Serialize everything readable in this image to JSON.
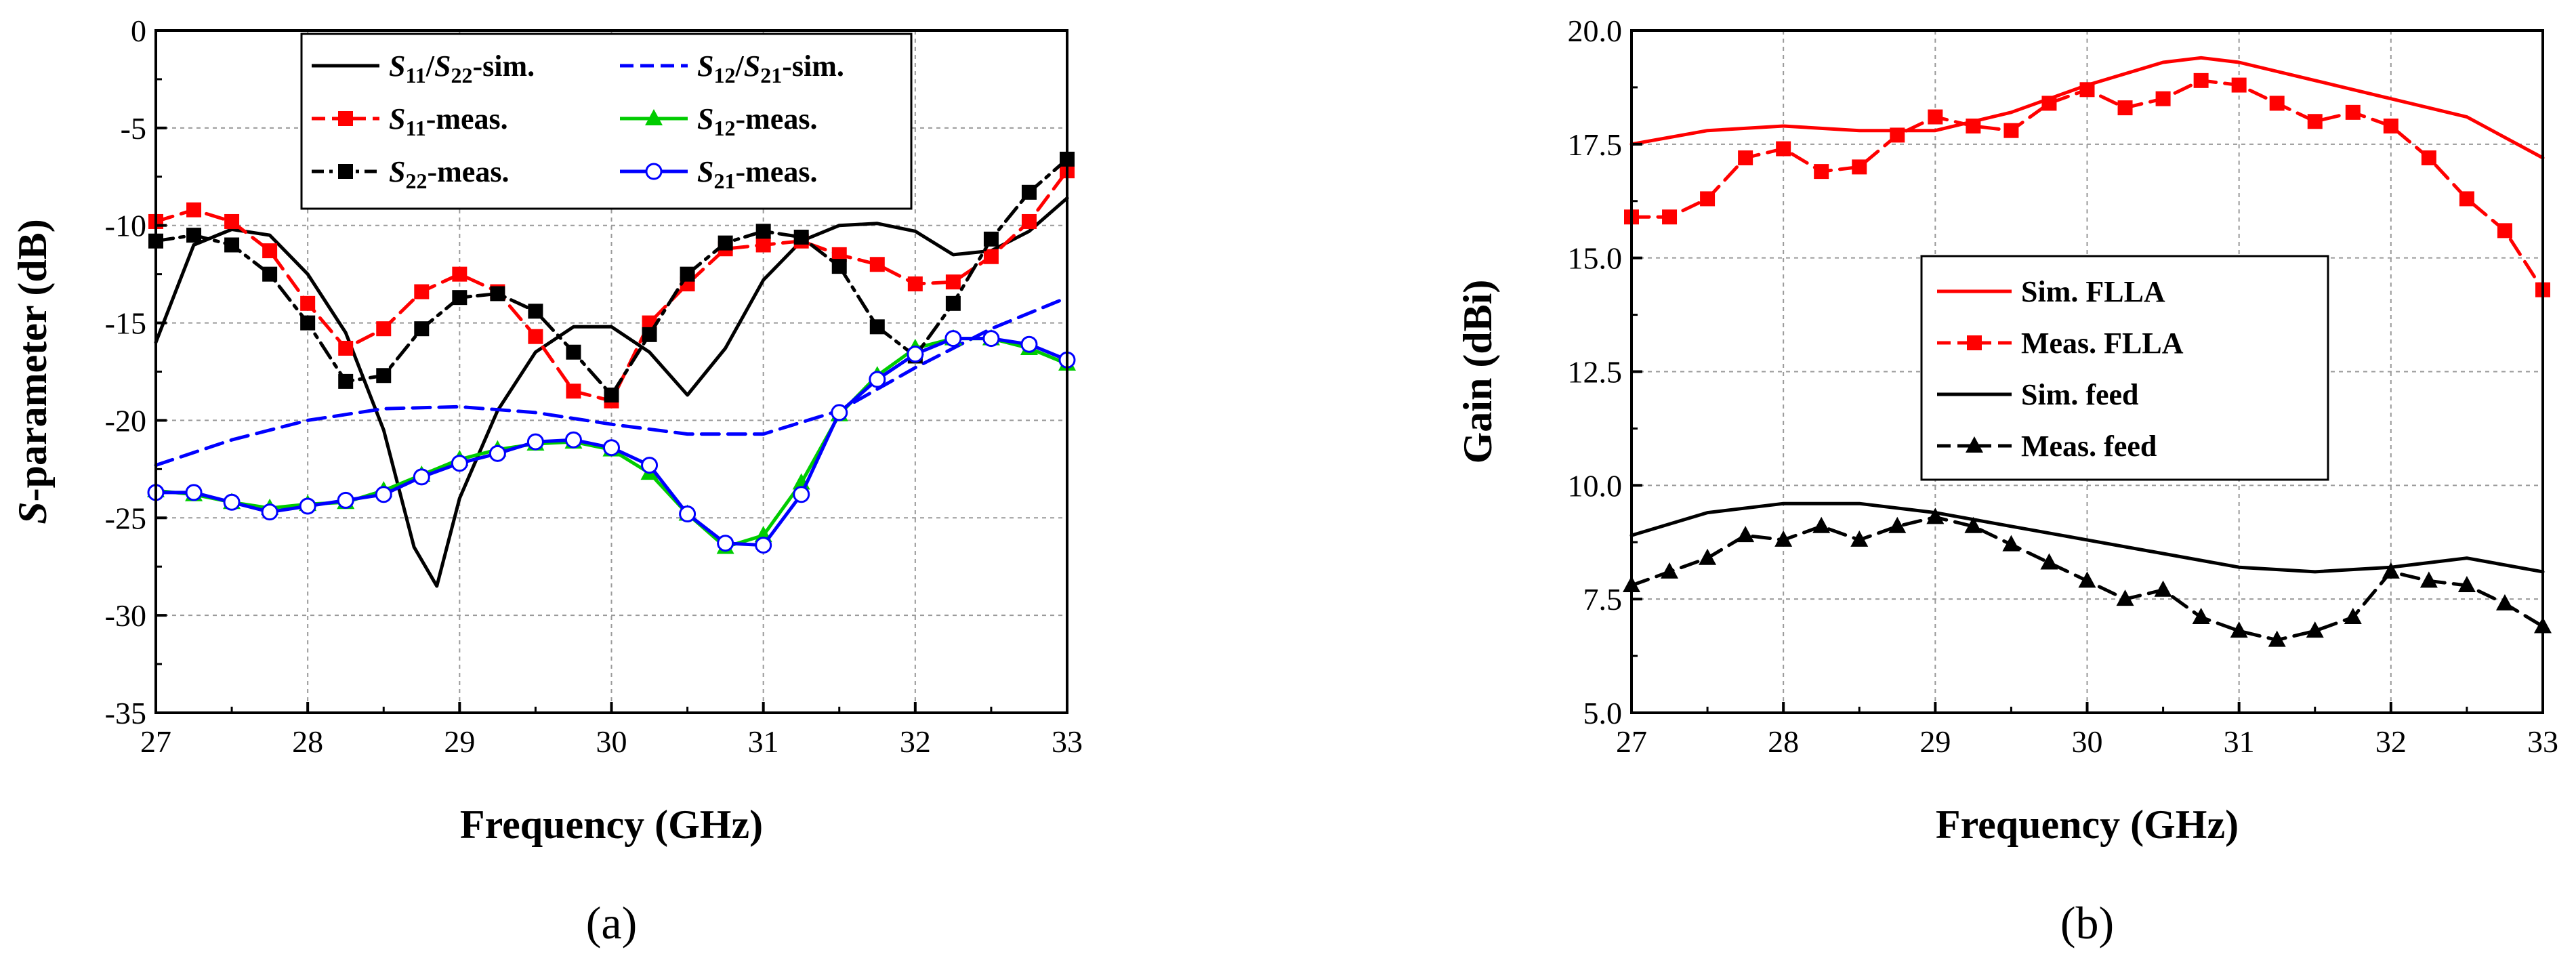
{
  "chart_data": [
    {
      "type": "line",
      "panel_label": "(a)",
      "title": "",
      "xlabel": "Frequency (GHz)",
      "ylabel": "S-parameter (dB)",
      "ylabel_parts": [
        "S",
        "-parameter  (dB)"
      ],
      "xlim": [
        27,
        33
      ],
      "ylim": [
        -35,
        0
      ],
      "xticks": [
        27,
        28,
        29,
        30,
        31,
        32,
        33
      ],
      "yticks": [
        0,
        -5,
        -10,
        -15,
        -20,
        -25,
        -30,
        -35
      ],
      "grid": true,
      "legend_position": "top-center",
      "series": [
        {
          "name": "S11/S22-sim.",
          "label_parts": [
            [
              "S",
              ""
            ],
            [
              "11",
              "sub"
            ],
            [
              "/",
              ""
            ],
            [
              "S",
              ""
            ],
            [
              "22",
              "sub"
            ],
            [
              "-sim.",
              ""
            ]
          ],
          "color": "#000000",
          "dash": "solid",
          "marker": "none",
          "x": [
            27,
            27.25,
            27.5,
            27.75,
            28,
            28.25,
            28.5,
            28.7,
            28.85,
            29,
            29.25,
            29.5,
            29.75,
            30,
            30.25,
            30.5,
            30.75,
            31,
            31.25,
            31.5,
            31.75,
            32,
            32.25,
            32.5,
            32.75,
            33
          ],
          "y": [
            -16,
            -11,
            -10.2,
            -10.5,
            -12.5,
            -15.5,
            -20.5,
            -26.5,
            -28.5,
            -24,
            -19.5,
            -16.5,
            -15.2,
            -15.2,
            -16.5,
            -18.7,
            -16.3,
            -12.8,
            -10.8,
            -10,
            -9.9,
            -10.3,
            -11.5,
            -11.3,
            -10.3,
            -8.6
          ]
        },
        {
          "name": "S12/S21-sim.",
          "label_parts": [
            [
              "S",
              ""
            ],
            [
              "12",
              "sub"
            ],
            [
              "/",
              ""
            ],
            [
              "S",
              ""
            ],
            [
              "21",
              "sub"
            ],
            [
              "-sim.",
              ""
            ]
          ],
          "color": "#0000ff",
          "dash": "dash",
          "marker": "none",
          "x": [
            27,
            27.5,
            28,
            28.5,
            29,
            29.5,
            30,
            30.5,
            31,
            31.5,
            32,
            32.5,
            33
          ],
          "y": [
            -22.3,
            -21,
            -20,
            -19.4,
            -19.3,
            -19.6,
            -20.2,
            -20.7,
            -20.7,
            -19.5,
            -17.3,
            -15.3,
            -13.7
          ]
        },
        {
          "name": "S11-meas.",
          "label_parts": [
            [
              "S",
              ""
            ],
            [
              "11",
              "sub"
            ],
            [
              "-meas.",
              ""
            ]
          ],
          "color": "#ff0000",
          "dash": "dash",
          "marker": "square",
          "x": [
            27,
            27.25,
            27.5,
            27.75,
            28,
            28.25,
            28.5,
            28.75,
            29,
            29.25,
            29.5,
            29.75,
            30,
            30.25,
            30.5,
            30.75,
            31,
            31.25,
            31.5,
            31.75,
            32,
            32.25,
            32.5,
            32.75,
            33
          ],
          "y": [
            -9.8,
            -9.2,
            -9.8,
            -11.3,
            -14,
            -16.3,
            -15.3,
            -13.4,
            -12.5,
            -13.4,
            -15.7,
            -18.5,
            -19,
            -15,
            -13,
            -11.2,
            -11,
            -10.8,
            -11.5,
            -12,
            -13,
            -12.9,
            -11.6,
            -9.8,
            -7.2
          ]
        },
        {
          "name": "S12-meas.",
          "label_parts": [
            [
              "S",
              ""
            ],
            [
              "12",
              "sub"
            ],
            [
              "-meas.",
              ""
            ]
          ],
          "color": "#00cc00",
          "dash": "solid",
          "marker": "triangle",
          "x": [
            27,
            27.25,
            27.5,
            27.75,
            28,
            28.25,
            28.5,
            28.75,
            29,
            29.25,
            29.5,
            29.75,
            30,
            30.25,
            30.5,
            30.75,
            31,
            31.25,
            31.5,
            31.75,
            32,
            32.25,
            32.5,
            32.75,
            33
          ],
          "y": [
            -23.6,
            -23.8,
            -24.2,
            -24.5,
            -24.3,
            -24.2,
            -23.6,
            -22.8,
            -22,
            -21.5,
            -21.2,
            -21.1,
            -21.5,
            -22.7,
            -24.8,
            -26.5,
            -25.9,
            -23.2,
            -19.7,
            -17.7,
            -16.3,
            -15.8,
            -15.8,
            -16.3,
            -17.1
          ]
        },
        {
          "name": "S22-meas.",
          "label_parts": [
            [
              "S",
              ""
            ],
            [
              "22",
              "sub"
            ],
            [
              "-meas.",
              ""
            ]
          ],
          "color": "#000000",
          "dash": "dashdot",
          "marker": "square",
          "x": [
            27,
            27.25,
            27.5,
            27.75,
            28,
            28.25,
            28.5,
            28.75,
            29,
            29.25,
            29.5,
            29.75,
            30,
            30.25,
            30.5,
            30.75,
            31,
            31.25,
            31.5,
            31.75,
            32,
            32.25,
            32.5,
            32.75,
            33
          ],
          "y": [
            -10.8,
            -10.5,
            -11,
            -12.5,
            -15,
            -18,
            -17.7,
            -15.3,
            -13.7,
            -13.5,
            -14.4,
            -16.5,
            -18.7,
            -15.6,
            -12.5,
            -10.9,
            -10.3,
            -10.6,
            -12.1,
            -15.2,
            -16.7,
            -14,
            -10.7,
            -8.3,
            -6.6
          ]
        },
        {
          "name": "S21-meas.",
          "label_parts": [
            [
              "S",
              ""
            ],
            [
              "21",
              "sub"
            ],
            [
              "-meas.",
              ""
            ]
          ],
          "color": "#0000ff",
          "dash": "solid",
          "marker": "circle",
          "x": [
            27,
            27.25,
            27.5,
            27.75,
            28,
            28.25,
            28.5,
            28.75,
            29,
            29.25,
            29.5,
            29.75,
            30,
            30.25,
            30.5,
            30.75,
            31,
            31.25,
            31.5,
            31.75,
            32,
            32.25,
            32.5,
            32.75,
            33
          ],
          "y": [
            -23.7,
            -23.7,
            -24.2,
            -24.7,
            -24.4,
            -24.1,
            -23.8,
            -22.9,
            -22.2,
            -21.7,
            -21.1,
            -21,
            -21.4,
            -22.3,
            -24.8,
            -26.3,
            -26.4,
            -23.8,
            -19.6,
            -17.9,
            -16.6,
            -15.8,
            -15.8,
            -16.1,
            -16.9
          ]
        }
      ]
    },
    {
      "type": "line",
      "panel_label": "(b)",
      "title": "",
      "xlabel": "Frequency (GHz)",
      "ylabel": "Gain (dBi)",
      "xlim": [
        27,
        33
      ],
      "ylim": [
        5,
        20
      ],
      "xticks": [
        27,
        28,
        29,
        30,
        31,
        32,
        33
      ],
      "yticks": [
        5.0,
        7.5,
        10.0,
        12.5,
        15.0,
        17.5,
        20.0
      ],
      "ytick_labels": [
        "5.0",
        "7.5",
        "10.0",
        "12.5",
        "15.0",
        "17.5",
        "20.0"
      ],
      "grid": true,
      "legend_position": "center",
      "series": [
        {
          "name": "Sim. FLLA",
          "color": "#ff0000",
          "dash": "solid",
          "marker": "none",
          "x": [
            27,
            27.5,
            28,
            28.5,
            29,
            29.5,
            30,
            30.5,
            30.75,
            31,
            31.5,
            32,
            32.5,
            33
          ],
          "y": [
            17.5,
            17.8,
            17.9,
            17.8,
            17.8,
            18.2,
            18.8,
            19.3,
            19.4,
            19.3,
            18.9,
            18.5,
            18.1,
            17.2
          ]
        },
        {
          "name": "Meas. FLLA",
          "color": "#ff0000",
          "dash": "dash",
          "marker": "square",
          "x": [
            27,
            27.25,
            27.5,
            27.75,
            28,
            28.25,
            28.5,
            28.75,
            29,
            29.25,
            29.5,
            29.75,
            30,
            30.25,
            30.5,
            30.75,
            31,
            31.25,
            31.5,
            31.75,
            32,
            32.25,
            32.5,
            32.75,
            33
          ],
          "y": [
            15.9,
            15.9,
            16.3,
            17.2,
            17.4,
            16.9,
            17,
            17.7,
            18.1,
            17.9,
            17.8,
            18.4,
            18.7,
            18.3,
            18.5,
            18.9,
            18.8,
            18.4,
            18,
            18.2,
            17.9,
            17.2,
            16.3,
            15.6,
            14.3
          ]
        },
        {
          "name": "Sim. feed",
          "color": "#000000",
          "dash": "solid",
          "marker": "none",
          "x": [
            27,
            27.5,
            28,
            28.25,
            28.5,
            29,
            29.5,
            30,
            30.5,
            31,
            31.5,
            32,
            32.5,
            33
          ],
          "y": [
            8.9,
            9.4,
            9.6,
            9.6,
            9.6,
            9.4,
            9.1,
            8.8,
            8.5,
            8.2,
            8.1,
            8.2,
            8.4,
            8.1
          ]
        },
        {
          "name": "Meas. feed",
          "color": "#000000",
          "dash": "dash",
          "marker": "triangle",
          "x": [
            27,
            27.25,
            27.5,
            27.75,
            28,
            28.25,
            28.5,
            28.75,
            29,
            29.25,
            29.5,
            29.75,
            30,
            30.25,
            30.5,
            30.75,
            31,
            31.25,
            31.5,
            31.75,
            32,
            32.25,
            32.5,
            32.75,
            33
          ],
          "y": [
            7.8,
            8.1,
            8.4,
            8.9,
            8.8,
            9.1,
            8.8,
            9.1,
            9.3,
            9.1,
            8.7,
            8.3,
            7.9,
            7.5,
            7.7,
            7.1,
            6.8,
            6.6,
            6.8,
            7.1,
            8.1,
            7.9,
            7.8,
            7.4,
            6.9
          ]
        }
      ]
    }
  ]
}
